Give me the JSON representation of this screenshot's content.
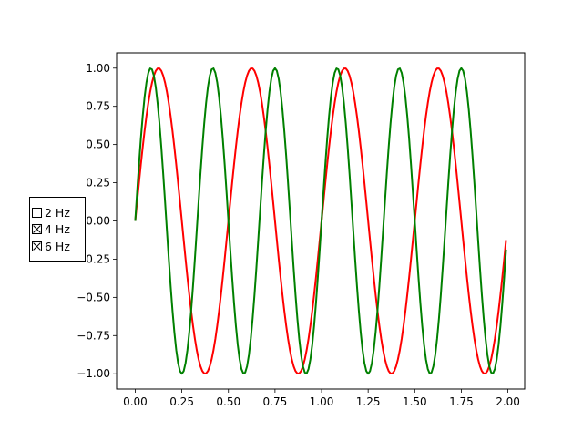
{
  "chart_data": {
    "type": "line",
    "title": "",
    "xlabel": "",
    "ylabel": "",
    "xlim": [
      -0.1,
      2.09
    ],
    "ylim": [
      -1.1,
      1.1
    ],
    "x_ticks": [
      0.0,
      0.25,
      0.5,
      0.75,
      1.0,
      1.25,
      1.5,
      1.75,
      2.0
    ],
    "x_tick_labels": [
      "0.00",
      "0.25",
      "0.50",
      "0.75",
      "1.00",
      "1.25",
      "1.50",
      "1.75",
      "2.00"
    ],
    "y_ticks": [
      -1.0,
      -0.75,
      -0.5,
      -0.25,
      0.0,
      0.25,
      0.5,
      0.75,
      1.0
    ],
    "y_tick_labels": [
      "−1.00",
      "−0.75",
      "−0.50",
      "−0.25",
      "0.00",
      "0.25",
      "0.50",
      "0.75",
      "1.00"
    ],
    "grid": false,
    "x_range": [
      0.0,
      1.99
    ],
    "x_step": 0.01,
    "series": [
      {
        "function": "sin",
        "frequency": 2,
        "color": "#ff0000",
        "visible": true
      },
      {
        "function": "sin",
        "frequency": 3,
        "color": "#008000",
        "visible": true
      }
    ]
  },
  "check_buttons": {
    "items": [
      {
        "label": "2 Hz",
        "checked": false
      },
      {
        "label": "4 Hz",
        "checked": true
      },
      {
        "label": "6 Hz",
        "checked": true
      }
    ]
  }
}
